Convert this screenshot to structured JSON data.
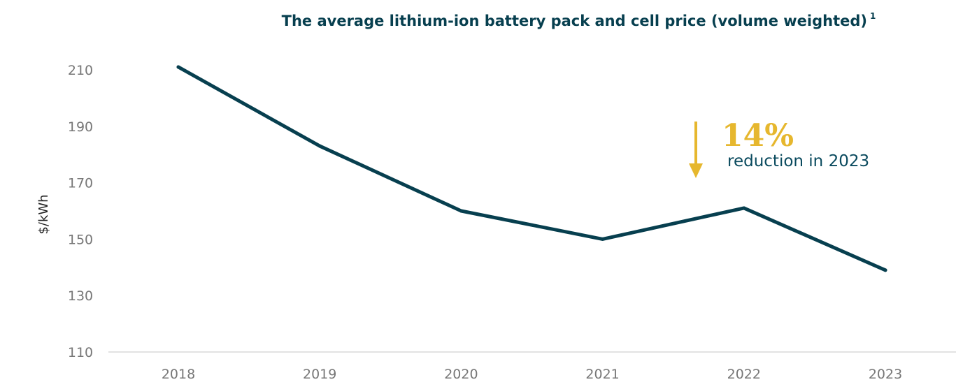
{
  "chart_data": {
    "type": "line",
    "title": "The average lithium-ion battery pack and cell price (volume weighted)",
    "title_footnote": "1",
    "xlabel": "",
    "ylabel": "$/kWh",
    "categories": [
      "2018",
      "2019",
      "2020",
      "2021",
      "2022",
      "2023"
    ],
    "series": [
      {
        "values": [
          211,
          183,
          160,
          150,
          161,
          139
        ]
      }
    ],
    "ylim": [
      110,
      210
    ],
    "yticks": [
      210,
      190,
      170,
      150,
      130,
      110
    ],
    "grid": false,
    "line_color": "#073f4f",
    "annotation": {
      "value": "14%",
      "text": "reduction in 2023",
      "color": "#e6b72e"
    }
  }
}
